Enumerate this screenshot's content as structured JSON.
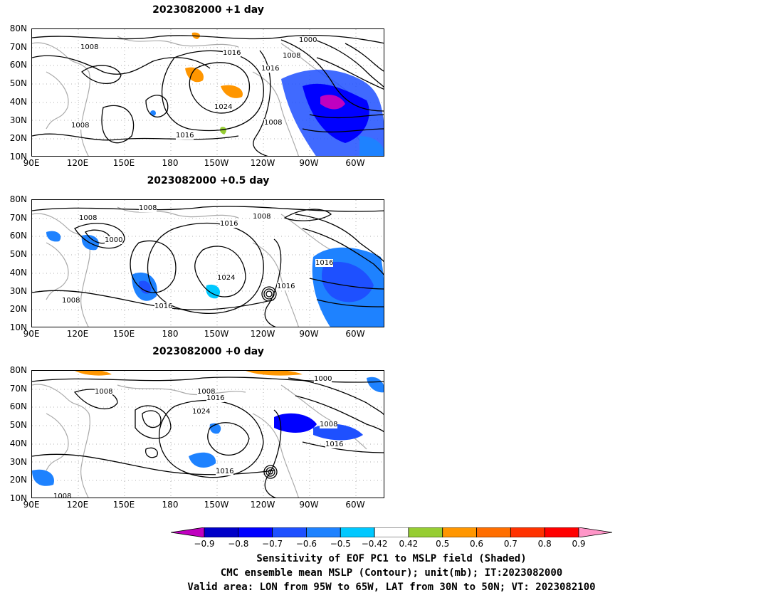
{
  "panels": [
    {
      "title": "2023082000 +1 day",
      "contour_labels": [
        "1008",
        "1016",
        "1000",
        "1008",
        "1016",
        "1024",
        "1008",
        "1008",
        "1016"
      ]
    },
    {
      "title": "2023082000 +0.5 day",
      "contour_labels": [
        "1008",
        "1008",
        "1008",
        "1016",
        "1000",
        "1016",
        "1024",
        "1016",
        "1008",
        "1016"
      ]
    },
    {
      "title": "2023082000 +0 day",
      "contour_labels": [
        "1008",
        "1008",
        "1016",
        "1000",
        "1024",
        "1008",
        "1016",
        "1016",
        "1008"
      ]
    }
  ],
  "lat_labels": [
    "80N",
    "70N",
    "60N",
    "50N",
    "40N",
    "30N",
    "20N",
    "10N"
  ],
  "lon_labels": [
    "90E",
    "120E",
    "150E",
    "180",
    "150W",
    "120W",
    "90W",
    "60W"
  ],
  "colorbar": {
    "ticks": [
      "-0.9",
      "-0.8",
      "-0.7",
      "-0.6",
      "-0.5",
      "-0.42",
      "0.42",
      "0.5",
      "0.6",
      "0.7",
      "0.8",
      "0.9"
    ],
    "colors": [
      "#c000c0",
      "#0000c8",
      "#0000ff",
      "#1e50ff",
      "#1e82ff",
      "#00c8ff",
      "#ffffff",
      "#96cd32",
      "#ff9600",
      "#ff6e00",
      "#ff3200",
      "#ff0000",
      "#ff96c8"
    ]
  },
  "caption": {
    "line1": "Sensitivity of EOF PC1 to MSLP field (Shaded)",
    "line2": "CMC ensemble mean MSLP (Contour); unit(mb); IT:2023082000",
    "line3": "Valid area: LON from 95W to 65W, LAT from 30N to 50N; VT: 2023082100"
  }
}
